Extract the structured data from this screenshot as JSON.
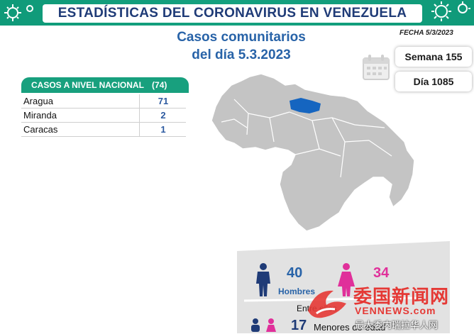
{
  "header": {
    "title": "ESTADÍSTICAS DEL CORONAVIRUS EN VENEZUELA"
  },
  "date": "FECHA 5/3/2023",
  "subtitle": {
    "line1": "Casos comunitarios",
    "line2": "del día 5.3.2023"
  },
  "week": "Semana 155",
  "day": "Día 1085",
  "national": {
    "label": "CASOS A NIVEL NACIONAL",
    "total": "(74)",
    "rows": [
      {
        "name": "Aragua",
        "value": "71"
      },
      {
        "name": "Miranda",
        "value": "2"
      },
      {
        "name": "Caracas",
        "value": "1"
      }
    ]
  },
  "gender": {
    "men_count": "40",
    "men_label": "Hombres",
    "women_count": "34"
  },
  "minors": {
    "intro": "Entre ellos",
    "count": "17",
    "label": "Menores de edad"
  },
  "watermark": {
    "brand": "委国新闻网",
    "url": "VENNEWS.com",
    "tagline": "最大委内瑞拉华人网"
  },
  "colors": {
    "banner": "#0f9a79",
    "title": "#1f3b77",
    "accent": "#2863a8",
    "highlight": "#1565c0",
    "women": "#e0309a"
  }
}
